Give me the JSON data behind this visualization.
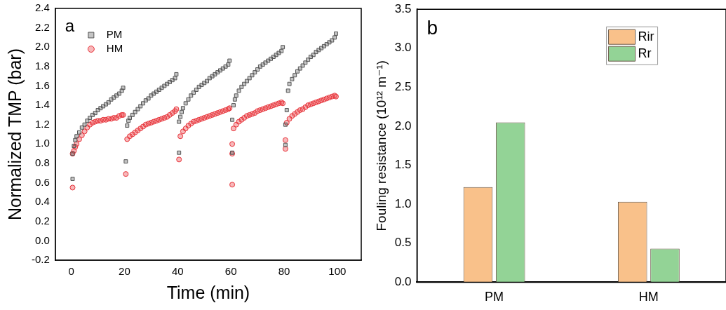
{
  "chart_data": [
    {
      "type": "scatter",
      "xlabel": "Time (min)",
      "ylabel": "Normalized TMP (bar)",
      "annotations": [
        "a"
      ],
      "xlim": [
        -6,
        109
      ],
      "xticks": [
        0,
        20,
        40,
        60,
        80,
        100
      ],
      "ylim": [
        -0.2,
        2.4
      ],
      "yticks": [
        -0.2,
        {
          "value": 0,
          "label": "0.0"
        },
        0.2,
        0.4,
        0.6,
        0.8,
        {
          "value": 1,
          "label": "1.0"
        },
        1.2,
        1.4,
        1.6,
        1.8,
        {
          "value": 2,
          "label": "2.0"
        },
        2.2,
        2.4
      ],
      "grid": false,
      "legend": "top left",
      "series": [
        {
          "name": "PM",
          "color": "#555555",
          "marker": "square",
          "x": [
            0.5,
            0.5,
            1,
            1.5,
            2,
            3,
            4,
            5,
            6,
            7,
            8,
            9,
            10,
            11,
            12,
            13,
            14,
            15,
            16,
            17,
            18,
            19,
            19.5,
            20.5,
            21,
            21.5,
            22,
            23,
            24,
            25,
            26,
            27,
            28,
            29,
            30,
            31,
            32,
            33,
            34,
            35,
            36,
            37,
            38,
            39,
            39.5,
            40.5,
            40.5,
            41,
            41.5,
            42,
            43,
            44,
            45,
            46,
            47,
            48,
            49,
            50,
            51,
            52,
            53,
            54,
            55,
            56,
            57,
            58,
            59,
            59.5,
            60.5,
            60.5,
            61,
            61.5,
            62,
            63,
            64,
            65,
            66,
            67,
            68,
            69,
            70,
            71,
            72,
            73,
            74,
            75,
            76,
            77,
            78,
            79,
            79.5,
            80.5,
            80.5,
            81,
            81.5,
            82,
            83,
            84,
            85,
            86,
            87,
            88,
            89,
            90,
            91,
            92,
            93,
            94,
            95,
            96,
            97,
            98,
            99,
            99.5
          ],
          "values": [
            0.64,
            0.9,
            0.98,
            1.04,
            1.08,
            1.12,
            1.17,
            1.2,
            1.24,
            1.27,
            1.3,
            1.32,
            1.35,
            1.37,
            1.39,
            1.41,
            1.43,
            1.46,
            1.48,
            1.5,
            1.52,
            1.55,
            1.58,
            0.82,
            1.19,
            1.24,
            1.27,
            1.3,
            1.33,
            1.36,
            1.39,
            1.42,
            1.45,
            1.47,
            1.5,
            1.52,
            1.54,
            1.56,
            1.58,
            1.6,
            1.62,
            1.64,
            1.66,
            1.68,
            1.72,
            0.91,
            1.23,
            1.28,
            1.33,
            1.37,
            1.42,
            1.46,
            1.5,
            1.53,
            1.56,
            1.59,
            1.61,
            1.63,
            1.65,
            1.68,
            1.7,
            1.72,
            1.74,
            1.76,
            1.78,
            1.8,
            1.82,
            1.86,
            0.91,
            1.25,
            1.4,
            1.46,
            1.5,
            1.55,
            1.59,
            1.62,
            1.65,
            1.68,
            1.71,
            1.74,
            1.77,
            1.8,
            1.82,
            1.84,
            1.86,
            1.88,
            1.9,
            1.92,
            1.94,
            1.96,
            2.0,
            0.99,
            1.2,
            1.35,
            1.55,
            1.62,
            1.67,
            1.71,
            1.75,
            1.78,
            1.81,
            1.84,
            1.87,
            1.9,
            1.92,
            1.95,
            1.97,
            1.99,
            2.01,
            2.03,
            2.05,
            2.07,
            2.1,
            2.14
          ]
        },
        {
          "name": "HM",
          "color": "#e8333a",
          "marker": "circle",
          "x": [
            0.5,
            0.5,
            1,
            1.5,
            2,
            3,
            4,
            5,
            6,
            7,
            8,
            9,
            10,
            11,
            12,
            13,
            14,
            15,
            16,
            17,
            18,
            19,
            19.5,
            20.5,
            21,
            22,
            23,
            24,
            25,
            26,
            27,
            28,
            29,
            30,
            31,
            32,
            33,
            34,
            35,
            36,
            37,
            38,
            39,
            39.5,
            40.5,
            41,
            42,
            43,
            44,
            45,
            46,
            47,
            48,
            49,
            50,
            51,
            52,
            53,
            54,
            55,
            56,
            57,
            58,
            59,
            59.5,
            60.5,
            60.5,
            60.5,
            61,
            62,
            63,
            64,
            65,
            66,
            67,
            68,
            69,
            70,
            71,
            72,
            73,
            74,
            75,
            76,
            77,
            78,
            79,
            79.5,
            80.5,
            80.5,
            81,
            82,
            83,
            84,
            85,
            86,
            87,
            88,
            89,
            90,
            91,
            92,
            93,
            94,
            95,
            96,
            97,
            98,
            99,
            99.5
          ],
          "values": [
            0.55,
            0.9,
            0.93,
            0.97,
            1.0,
            1.05,
            1.09,
            1.13,
            1.17,
            1.2,
            1.22,
            1.23,
            1.24,
            1.24,
            1.25,
            1.25,
            1.26,
            1.26,
            1.27,
            1.27,
            1.29,
            1.3,
            1.3,
            0.69,
            1.05,
            1.08,
            1.1,
            1.12,
            1.14,
            1.16,
            1.18,
            1.2,
            1.21,
            1.22,
            1.23,
            1.24,
            1.25,
            1.26,
            1.27,
            1.28,
            1.3,
            1.32,
            1.34,
            1.36,
            0.84,
            1.08,
            1.13,
            1.16,
            1.19,
            1.21,
            1.23,
            1.24,
            1.25,
            1.26,
            1.27,
            1.28,
            1.29,
            1.3,
            1.31,
            1.32,
            1.33,
            1.34,
            1.35,
            1.36,
            1.37,
            0.58,
            0.9,
            1.0,
            1.16,
            1.2,
            1.23,
            1.25,
            1.27,
            1.29,
            1.3,
            1.31,
            1.32,
            1.34,
            1.35,
            1.36,
            1.37,
            1.38,
            1.39,
            1.4,
            1.41,
            1.42,
            1.43,
            1.42,
            0.95,
            1.04,
            1.22,
            1.26,
            1.29,
            1.31,
            1.33,
            1.35,
            1.36,
            1.38,
            1.4,
            1.41,
            1.42,
            1.43,
            1.44,
            1.45,
            1.46,
            1.47,
            1.48,
            1.49,
            1.5,
            1.49
          ]
        }
      ]
    },
    {
      "type": "bar",
      "ylabel": "Fouling resistance (10¹² m⁻¹)",
      "annotations": [
        "b"
      ],
      "categories": [
        "PM",
        "HM"
      ],
      "ylim": [
        0,
        3.5
      ],
      "yticks": [
        {
          "value": 0,
          "label": "0.0"
        },
        0.5,
        {
          "value": 1,
          "label": "1.0"
        },
        1.5,
        {
          "value": 2,
          "label": "2.0"
        },
        2.5,
        {
          "value": 3,
          "label": "3.0"
        },
        3.5
      ],
      "grid": false,
      "legend": "top right",
      "series": [
        {
          "name": "Rir",
          "color": "#f9c18a",
          "values": [
            1.22,
            1.03
          ]
        },
        {
          "name": "Rr",
          "color": "#93d396",
          "values": [
            2.05,
            0.43
          ]
        }
      ]
    }
  ]
}
